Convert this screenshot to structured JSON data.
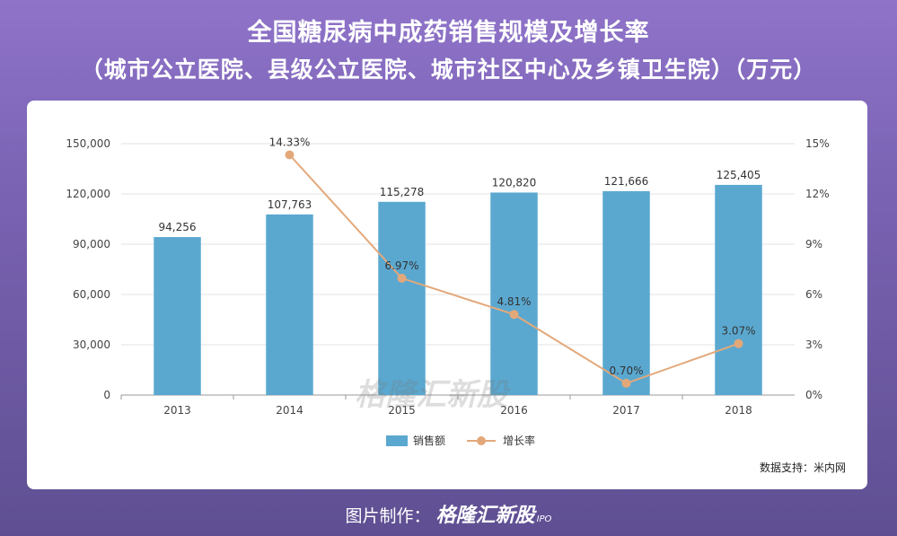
{
  "title_line1": "全国糖尿病中成药销售规模及增长率",
  "title_line2": "（城市公立医院、县级公立医院、城市社区中心及乡镇卫生院）（万元）",
  "source": "数据支持：米内网",
  "footer_label": "图片制作：",
  "brand": "格隆汇新股",
  "brand_suffix": "IPO",
  "watermark": "格隆汇新股",
  "chart_data": {
    "type": "bar",
    "categories": [
      "2013",
      "2014",
      "2015",
      "2016",
      "2017",
      "2018"
    ],
    "series": [
      {
        "name": "销售额",
        "type": "bar",
        "axis": "left",
        "color": "#5aa8d0",
        "values": [
          94256,
          107763,
          115278,
          120820,
          121666,
          125405
        ],
        "labels": [
          "94,256",
          "107,763",
          "115,278",
          "120,820",
          "121,666",
          "125,405"
        ]
      },
      {
        "name": "增长率",
        "type": "line",
        "axis": "right",
        "color": "#e3a87a",
        "x": [
          "2014",
          "2015",
          "2016",
          "2017",
          "2018"
        ],
        "values": [
          14.33,
          6.97,
          4.81,
          0.7,
          3.07
        ],
        "labels": [
          "14.33%",
          "6.97%",
          "4.81%",
          "0.70%",
          "3.07%"
        ]
      }
    ],
    "y_left": {
      "ylim": [
        0,
        150000
      ],
      "ticks": [
        "0",
        "30,000",
        "60,000",
        "90,000",
        "120,000",
        "150,000"
      ]
    },
    "y_right": {
      "ylim": [
        0,
        15
      ],
      "ticks": [
        "0%",
        "3%",
        "6%",
        "9%",
        "12%",
        "15%"
      ]
    },
    "grid": true,
    "legend_position": "bottom-center"
  }
}
